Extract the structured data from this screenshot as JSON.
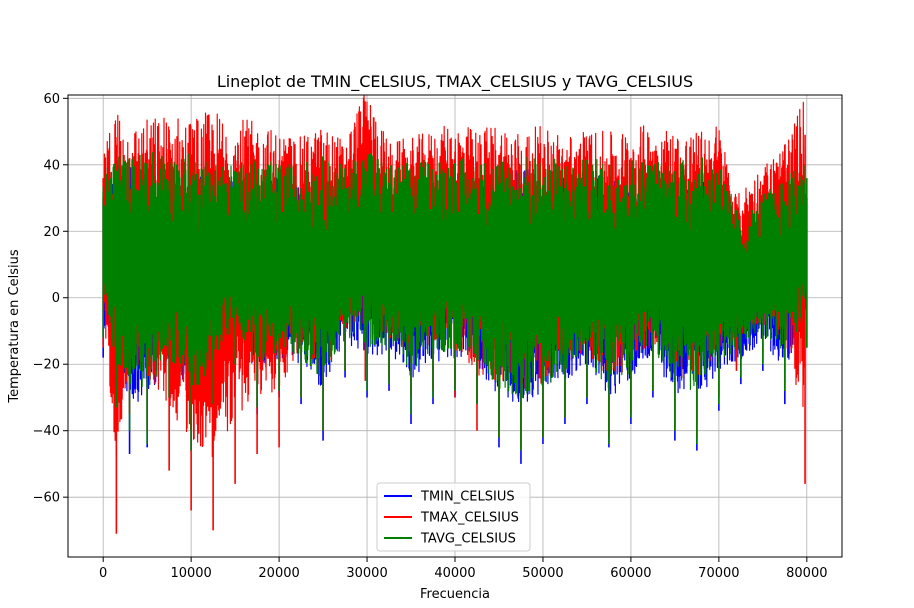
{
  "chart_data": {
    "type": "line",
    "title": "Lineplot de TMIN_CELSIUS, TMAX_CELSIUS y TAVG_CELSIUS",
    "xlabel": "Frecuencia",
    "ylabel": "Temperatura en Celsius",
    "xlim": [
      -4000,
      84000
    ],
    "ylim": [
      -78,
      61
    ],
    "xticks": [
      0,
      10000,
      20000,
      30000,
      40000,
      50000,
      60000,
      70000,
      80000
    ],
    "xtick_labels": [
      "0",
      "10000",
      "20000",
      "30000",
      "40000",
      "50000",
      "60000",
      "70000",
      "80000"
    ],
    "yticks": [
      -60,
      -40,
      -20,
      0,
      20,
      40,
      60
    ],
    "ytick_labels": [
      "−60",
      "−40",
      "−20",
      "0",
      "20",
      "40",
      "60"
    ],
    "grid": true,
    "legend_position": "bottom-center",
    "series": [
      {
        "name": "TMIN_CELSIUS",
        "color": "#0000ff",
        "x": [
          0,
          1500,
          3000,
          5000,
          7500,
          10000,
          12500,
          15000,
          17500,
          20000,
          22500,
          25000,
          27500,
          30000,
          32500,
          35000,
          37500,
          40000,
          42500,
          45000,
          47500,
          50000,
          52500,
          55000,
          57500,
          60000,
          62500,
          65000,
          67500,
          70000,
          72500,
          75000,
          77500,
          80000
        ],
        "upper": [
          30,
          31,
          30,
          30,
          29,
          30,
          30,
          29,
          29,
          29,
          28,
          29,
          29,
          30,
          29,
          29,
          29,
          29,
          29,
          29,
          29,
          30,
          29,
          29,
          29,
          29,
          29,
          29,
          29,
          30,
          13,
          20,
          22,
          30
        ],
        "lower": [
          -18,
          -28,
          -47,
          -45,
          -30,
          -46,
          -32,
          -22,
          -35,
          -30,
          -32,
          -43,
          -24,
          -30,
          -28,
          -38,
          -32,
          -30,
          -32,
          -45,
          -50,
          -44,
          -38,
          -32,
          -45,
          -38,
          -30,
          -43,
          -46,
          -34,
          -26,
          -22,
          -32,
          -15
        ]
      },
      {
        "name": "TMAX_CELSIUS",
        "color": "#ff0000",
        "x": [
          0,
          1500,
          3000,
          5000,
          7500,
          10000,
          12500,
          15000,
          17500,
          20000,
          22500,
          25000,
          27500,
          29800,
          32500,
          35000,
          37500,
          40000,
          42500,
          45000,
          47500,
          50000,
          52500,
          55000,
          57500,
          60000,
          62500,
          65000,
          67500,
          70000,
          72000,
          75000,
          77500,
          79800
        ],
        "upper": [
          36,
          46,
          42,
          44,
          44,
          42,
          43,
          43,
          42,
          40,
          40,
          42,
          40,
          54,
          39,
          40,
          42,
          44,
          41,
          43,
          40,
          42,
          40,
          42,
          40,
          42,
          44,
          41,
          40,
          44,
          25,
          34,
          38,
          49
        ],
        "lower": [
          -15,
          -71,
          -35,
          -40,
          -52,
          -64,
          -70,
          -56,
          -47,
          -45,
          -30,
          -40,
          -22,
          -25,
          -25,
          -30,
          -28,
          -30,
          -40,
          -42,
          -45,
          -42,
          -36,
          -30,
          -42,
          -35,
          -28,
          -40,
          -42,
          -30,
          -22,
          -18,
          -28,
          -56
        ]
      },
      {
        "name": "TAVG_CELSIUS",
        "color": "#008000",
        "x": [
          0,
          1500,
          3000,
          5000,
          7500,
          10000,
          12500,
          15000,
          17500,
          20000,
          22500,
          25000,
          27500,
          30000,
          32500,
          35000,
          37500,
          40000,
          42500,
          45000,
          47500,
          50000,
          52500,
          55000,
          57500,
          60000,
          62500,
          65000,
          67500,
          70000,
          72500,
          75000,
          77500,
          80000
        ],
        "upper": [
          32,
          36,
          34,
          35,
          35,
          34,
          34,
          34,
          34,
          33,
          33,
          34,
          33,
          38,
          33,
          33,
          34,
          35,
          33,
          34,
          33,
          34,
          33,
          34,
          33,
          34,
          34,
          33,
          33,
          34,
          18,
          26,
          29,
          36
        ],
        "lower": [
          -12,
          -33,
          -40,
          -44,
          -30,
          -46,
          -32,
          -20,
          -33,
          -28,
          -30,
          -40,
          -22,
          -28,
          -26,
          -35,
          -30,
          -28,
          -32,
          -42,
          -46,
          -42,
          -36,
          -30,
          -44,
          -36,
          -28,
          -40,
          -44,
          -32,
          -24,
          -20,
          -28,
          -15
        ]
      }
    ]
  }
}
